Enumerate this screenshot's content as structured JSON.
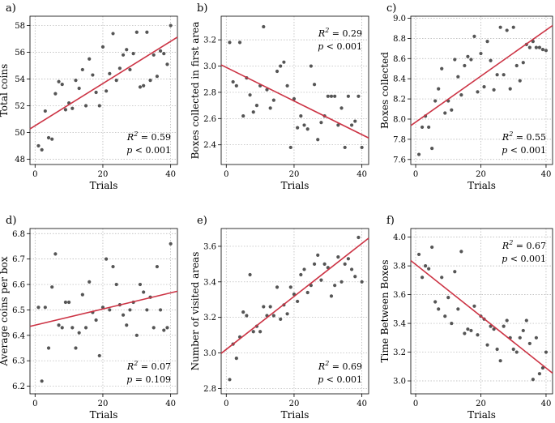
{
  "chart_data": [
    {
      "type": "scatter",
      "panel": "a)",
      "xlabel": "Trials",
      "ylabel": "Total coins",
      "xlim": [
        -1.5,
        42
      ],
      "ylim": [
        47.6,
        58.7
      ],
      "xticks": [
        0,
        20,
        40
      ],
      "yticks": [
        48,
        50,
        52,
        54,
        56,
        58
      ],
      "r2": "0.59",
      "p": "p < 0.001",
      "stats_position": "bottom-right",
      "fit": {
        "intercept": 50.5,
        "slope": 0.158
      },
      "x": [
        1,
        2,
        3,
        4,
        5,
        6,
        7,
        8,
        9,
        10,
        11,
        12,
        13,
        14,
        15,
        16,
        17,
        18,
        19,
        20,
        21,
        22,
        23,
        24,
        25,
        26,
        27,
        28,
        29,
        30,
        31,
        32,
        33,
        34,
        35,
        36,
        37,
        38,
        39,
        40
      ],
      "y": [
        49.0,
        48.7,
        51.6,
        49.6,
        49.5,
        52.9,
        53.8,
        53.6,
        51.7,
        52.2,
        51.8,
        53.9,
        53.3,
        54.7,
        52.0,
        55.5,
        54.3,
        53.0,
        52.0,
        56.4,
        53.1,
        54.4,
        57.4,
        53.9,
        54.8,
        55.8,
        56.2,
        54.7,
        55.9,
        57.5,
        53.4,
        53.5,
        57.5,
        53.9,
        55.8,
        54.2,
        56.1,
        55.9,
        55.1,
        58.0
      ]
    },
    {
      "type": "scatter",
      "panel": "b)",
      "xlabel": "Trials",
      "ylabel": "Boxes collected in first area",
      "xlim": [
        -1.5,
        42
      ],
      "ylim": [
        2.25,
        3.38
      ],
      "xticks": [
        0,
        20,
        40
      ],
      "yticks": [
        2.4,
        2.6,
        2.8,
        3.0,
        3.2
      ],
      "r2": "0.29",
      "p": "p < 0.001",
      "stats_position": "top-right",
      "fit": {
        "intercept": 2.99,
        "slope": -0.0128
      },
      "x": [
        1,
        2,
        3,
        4,
        5,
        6,
        7,
        8,
        9,
        10,
        11,
        12,
        13,
        14,
        15,
        16,
        17,
        18,
        19,
        20,
        21,
        22,
        23,
        24,
        25,
        26,
        27,
        28,
        29,
        30,
        31,
        32,
        33,
        34,
        35,
        36,
        37,
        38,
        39,
        40
      ],
      "y": [
        3.18,
        2.88,
        2.85,
        3.18,
        2.62,
        2.91,
        2.78,
        2.65,
        2.7,
        2.85,
        3.3,
        2.82,
        2.68,
        2.74,
        2.96,
        3.0,
        3.03,
        2.85,
        2.38,
        2.75,
        2.53,
        2.62,
        2.55,
        2.52,
        3.0,
        2.86,
        2.44,
        2.57,
        2.62,
        2.77,
        2.77,
        2.77,
        2.55,
        2.68,
        2.38,
        2.77,
        2.55,
        2.58,
        2.77,
        2.38
      ]
    },
    {
      "type": "scatter",
      "panel": "c)",
      "xlabel": "Trials",
      "ylabel": "Boxes collected",
      "xlim": [
        -1.5,
        42
      ],
      "ylim": [
        7.55,
        9.02
      ],
      "xticks": [
        0,
        20,
        40
      ],
      "yticks": [
        7.6,
        7.8,
        8.0,
        8.2,
        8.4,
        8.6,
        8.8,
        9.0
      ],
      "r2": "0.55",
      "p": "p < 0.001",
      "stats_position": "bottom-right",
      "fit": {
        "intercept": 7.97,
        "slope": 0.0228
      },
      "x": [
        1,
        2,
        3,
        4,
        5,
        6,
        7,
        8,
        9,
        10,
        11,
        12,
        13,
        14,
        15,
        16,
        17,
        18,
        19,
        20,
        21,
        22,
        23,
        24,
        25,
        26,
        27,
        28,
        29,
        30,
        31,
        32,
        33,
        34,
        35,
        36,
        37,
        38,
        39,
        40
      ],
      "y": [
        7.65,
        7.92,
        8.03,
        7.92,
        7.71,
        8.18,
        8.3,
        8.5,
        8.06,
        8.18,
        8.09,
        8.59,
        8.42,
        8.24,
        8.53,
        8.62,
        8.59,
        8.82,
        8.27,
        8.65,
        8.32,
        8.77,
        8.58,
        8.29,
        8.44,
        8.91,
        8.44,
        8.88,
        8.3,
        8.91,
        8.53,
        8.38,
        8.56,
        8.74,
        8.71,
        8.77,
        8.71,
        8.71,
        8.69,
        8.68
      ]
    },
    {
      "type": "scatter",
      "panel": "d)",
      "xlabel": "Trials",
      "ylabel": "Average coins per box",
      "xlim": [
        -1.5,
        42
      ],
      "ylim": [
        6.17,
        6.82
      ],
      "xticks": [
        0,
        20,
        40
      ],
      "yticks": [
        6.2,
        6.3,
        6.4,
        6.5,
        6.6,
        6.7,
        6.8
      ],
      "r2": "0.07",
      "p": "p = 0.109",
      "stats_position": "bottom-right",
      "fit": {
        "intercept": 6.44,
        "slope": 0.00318
      },
      "x": [
        1,
        2,
        3,
        4,
        5,
        6,
        7,
        8,
        9,
        10,
        11,
        12,
        13,
        14,
        15,
        16,
        17,
        18,
        19,
        20,
        21,
        22,
        23,
        24,
        25,
        26,
        27,
        28,
        29,
        30,
        31,
        32,
        33,
        34,
        35,
        36,
        37,
        38,
        39,
        40
      ],
      "y": [
        6.51,
        6.22,
        6.51,
        6.35,
        6.59,
        6.72,
        6.44,
        6.43,
        6.53,
        6.53,
        6.43,
        6.35,
        6.41,
        6.56,
        6.43,
        6.61,
        6.49,
        6.46,
        6.32,
        6.51,
        6.7,
        6.5,
        6.67,
        6.6,
        6.52,
        6.48,
        6.44,
        6.5,
        6.53,
        6.4,
        6.6,
        6.57,
        6.5,
        6.55,
        6.43,
        6.67,
        6.5,
        6.42,
        6.43,
        6.76
      ]
    },
    {
      "type": "scatter",
      "panel": "e)",
      "xlabel": "Trials",
      "ylabel": "Number of visited areas",
      "xlim": [
        -1.5,
        42
      ],
      "ylim": [
        2.77,
        3.7
      ],
      "xticks": [
        0,
        20,
        40
      ],
      "yticks": [
        2.8,
        3.0,
        3.2,
        3.4,
        3.6
      ],
      "r2": "0.69",
      "p": "p < 0.001",
      "stats_position": "bottom-right",
      "fit": {
        "intercept": 3.02,
        "slope": 0.0149
      },
      "x": [
        1,
        2,
        3,
        4,
        5,
        6,
        7,
        8,
        9,
        10,
        11,
        12,
        13,
        14,
        15,
        16,
        17,
        18,
        19,
        20,
        21,
        22,
        23,
        24,
        25,
        26,
        27,
        28,
        29,
        30,
        31,
        32,
        33,
        34,
        35,
        36,
        37,
        38,
        39,
        40
      ],
      "y": [
        2.85,
        3.05,
        2.97,
        3.09,
        3.23,
        3.21,
        3.44,
        3.12,
        3.15,
        3.12,
        3.26,
        3.21,
        3.26,
        3.21,
        3.37,
        3.19,
        3.27,
        3.22,
        3.37,
        3.33,
        3.29,
        3.44,
        3.47,
        3.34,
        3.38,
        3.5,
        3.55,
        3.41,
        3.5,
        3.48,
        3.32,
        3.38,
        3.54,
        3.4,
        3.5,
        3.53,
        3.47,
        3.43,
        3.65,
        3.4
      ]
    },
    {
      "type": "scatter",
      "panel": "f)",
      "xlabel": "Trials",
      "ylabel": "Time Between Boxes",
      "xlim": [
        -1.5,
        42
      ],
      "ylim": [
        2.91,
        4.06
      ],
      "xticks": [
        0,
        20,
        40
      ],
      "yticks": [
        3.0,
        3.2,
        3.4,
        3.6,
        3.8,
        4.0
      ],
      "r2": "0.67",
      "p": "p < 0.001",
      "stats_position": "top-right",
      "fit": {
        "intercept": 3.81,
        "slope": -0.018
      },
      "x": [
        1,
        2,
        3,
        4,
        5,
        6,
        7,
        8,
        9,
        10,
        11,
        12,
        13,
        14,
        15,
        16,
        17,
        18,
        19,
        20,
        21,
        22,
        23,
        24,
        25,
        26,
        27,
        28,
        29,
        30,
        31,
        32,
        33,
        34,
        35,
        36,
        37,
        38,
        39,
        40
      ],
      "y": [
        3.88,
        3.72,
        3.8,
        3.78,
        3.93,
        3.55,
        3.5,
        3.72,
        3.45,
        3.58,
        3.4,
        3.76,
        3.5,
        3.9,
        3.33,
        3.36,
        3.35,
        3.52,
        3.32,
        3.45,
        3.43,
        3.25,
        3.38,
        3.36,
        3.22,
        3.14,
        3.38,
        3.42,
        3.3,
        3.22,
        3.2,
        3.3,
        3.35,
        3.42,
        3.26,
        3.01,
        3.3,
        3.05,
        3.09,
        3.2
      ]
    }
  ]
}
